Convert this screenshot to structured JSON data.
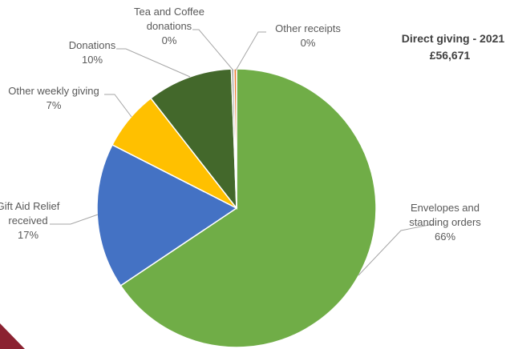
{
  "chart_data": {
    "type": "pie",
    "title": "Direct giving - 2021",
    "subtitle": "£56,671",
    "slices": [
      {
        "key": "env",
        "label": "Envelopes and standing orders",
        "label_lines": [
          "Envelopes and",
          "standing orders"
        ],
        "value": 66,
        "pct_label": "66%",
        "color": "#70ad47"
      },
      {
        "key": "gift",
        "label": "Gift Aid Relief received",
        "label_lines": [
          "Gift Aid Relief",
          "received"
        ],
        "value": 17,
        "pct_label": "17%",
        "color": "#4472c4"
      },
      {
        "key": "wkly",
        "label": "Other weekly giving",
        "label_lines": [
          "Other weekly giving"
        ],
        "value": 7,
        "pct_label": "7%",
        "color": "#ffc000"
      },
      {
        "key": "don",
        "label": "Donations",
        "label_lines": [
          "Donations"
        ],
        "value": 10,
        "pct_label": "10%",
        "color": "#43682b"
      },
      {
        "key": "tea",
        "label": "Tea and Coffee donations",
        "label_lines": [
          "Tea and Coffee",
          "donations"
        ],
        "value": 0.3,
        "pct_label": "0%",
        "color": "#a5a5a5"
      },
      {
        "key": "other",
        "label": "Other receipts",
        "label_lines": [
          "Other receipts"
        ],
        "value": 0.3,
        "pct_label": "0%",
        "color": "#ed7d31"
      }
    ],
    "decor_color": "#8b2231"
  }
}
